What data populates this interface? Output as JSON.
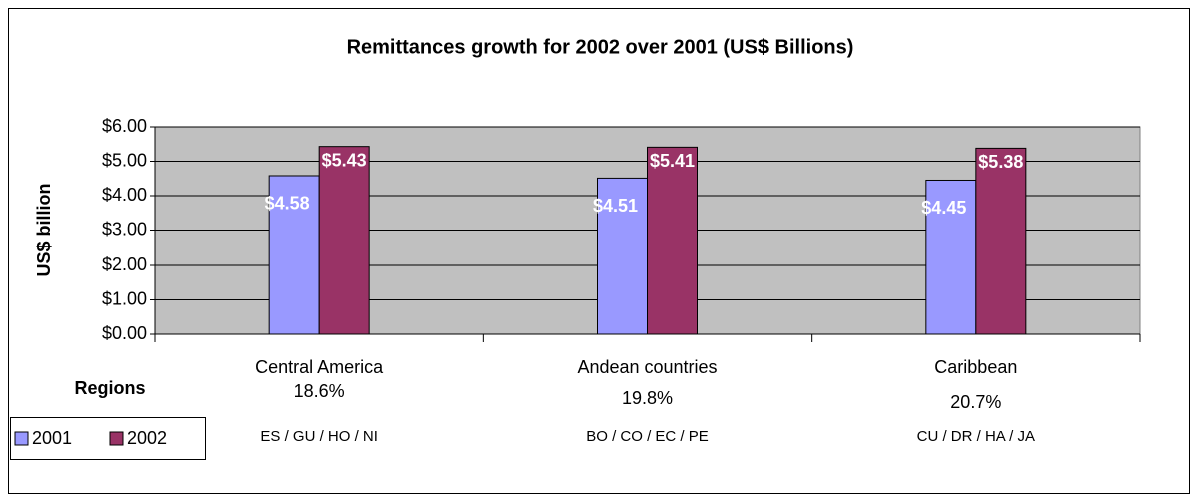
{
  "chart_data": {
    "type": "bar",
    "title": "Remittances growth for 2002 over 2001 (US$ Billions)",
    "y_label": "US$ billion",
    "x_label": "Regions",
    "categories": [
      "Central America",
      "Andean countries",
      "Caribbean"
    ],
    "growth_labels": [
      "18.6%",
      "19.8%",
      "20.7%"
    ],
    "country_labels": [
      "ES / GU / HO / NI",
      "BO / CO / EC / PE",
      "CU / DR / HA / JA"
    ],
    "series": [
      {
        "name": "2001",
        "color": "#9999ff",
        "values": [
          4.58,
          4.51,
          4.45
        ],
        "value_labels": [
          "$4.58",
          "$4.51",
          "$4.45"
        ]
      },
      {
        "name": "2002",
        "color": "#993366",
        "values": [
          5.43,
          5.41,
          5.38
        ],
        "value_labels": [
          "$5.43",
          "$5.41",
          "$5.38"
        ]
      }
    ],
    "ylim": [
      0,
      6
    ],
    "yticks": [
      {
        "value": 0,
        "label": "$0.00"
      },
      {
        "value": 1,
        "label": "$1.00"
      },
      {
        "value": 2,
        "label": "$2.00"
      },
      {
        "value": 3,
        "label": "$3.00"
      },
      {
        "value": 4,
        "label": "$4.00"
      },
      {
        "value": 5,
        "label": "$5.00"
      },
      {
        "value": 6,
        "label": "$6.00"
      }
    ],
    "grid": true,
    "plot_background": "#c0c0c0"
  }
}
